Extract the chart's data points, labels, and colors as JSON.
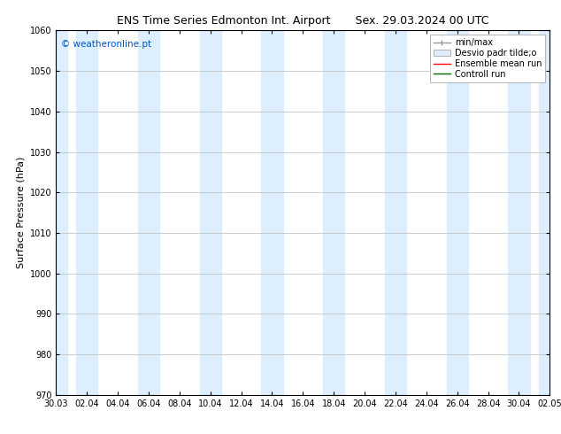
{
  "title_left": "ENS Time Series Edmonton Int. Airport",
  "title_right": "Sex. 29.03.2024 00 UTC",
  "ylabel": "Surface Pressure (hPa)",
  "ylim": [
    970,
    1060
  ],
  "yticks": [
    970,
    980,
    990,
    1000,
    1010,
    1020,
    1030,
    1040,
    1050,
    1060
  ],
  "x_tick_labels": [
    "30.03",
    "02.04",
    "04.04",
    "06.04",
    "08.04",
    "10.04",
    "12.04",
    "14.04",
    "16.04",
    "18.04",
    "20.04",
    "22.04",
    "24.04",
    "26.04",
    "28.04",
    "30.04",
    "02.05"
  ],
  "watermark": "© weatheronline.pt",
  "watermark_color": "#0055cc",
  "bg_color": "#ffffff",
  "plot_bg_color": "#ffffff",
  "stripe_color": "#ddeeff",
  "stripe_halfwidth": 0.35,
  "stripe_centers": [
    0,
    1,
    3,
    5,
    7,
    9,
    11,
    13,
    15,
    16
  ],
  "legend_entries": [
    "min/max",
    "Desvio padr tilde;o",
    "Ensemble mean run",
    "Controll run"
  ],
  "title_fontsize": 9,
  "tick_fontsize": 7,
  "label_fontsize": 8,
  "legend_fontsize": 7
}
